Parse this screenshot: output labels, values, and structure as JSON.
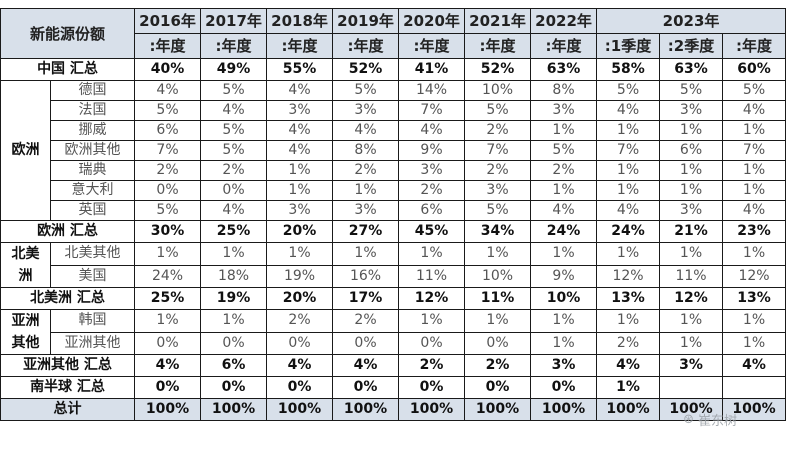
{
  "header": {
    "corner": "新能源份额",
    "years": [
      "2016年",
      "2017年",
      "2018年",
      "2019年",
      "2020年",
      "2021年",
      "2022年",
      "2023年"
    ],
    "periods": [
      ":年度",
      ":年度",
      ":年度",
      ":年度",
      ":年度",
      ":年度",
      ":年度",
      ":1季度",
      ":2季度",
      ":年度"
    ]
  },
  "china": {
    "label": "中国 汇总",
    "values": [
      "40%",
      "49%",
      "55%",
      "52%",
      "41%",
      "52%",
      "63%",
      "58%",
      "63%",
      "60%"
    ]
  },
  "europe": {
    "region": "欧洲",
    "rows": [
      {
        "name": "德国",
        "values": [
          "4%",
          "5%",
          "4%",
          "5%",
          "14%",
          "10%",
          "8%",
          "5%",
          "5%",
          "5%"
        ]
      },
      {
        "name": "法国",
        "values": [
          "5%",
          "4%",
          "3%",
          "3%",
          "7%",
          "5%",
          "3%",
          "4%",
          "3%",
          "4%"
        ]
      },
      {
        "name": "挪威",
        "values": [
          "6%",
          "5%",
          "4%",
          "4%",
          "4%",
          "2%",
          "1%",
          "1%",
          "1%",
          "1%"
        ]
      },
      {
        "name": "欧洲其他",
        "values": [
          "7%",
          "5%",
          "4%",
          "8%",
          "9%",
          "7%",
          "5%",
          "7%",
          "6%",
          "7%"
        ]
      },
      {
        "name": "瑞典",
        "values": [
          "2%",
          "2%",
          "1%",
          "2%",
          "3%",
          "2%",
          "2%",
          "1%",
          "1%",
          "1%"
        ]
      },
      {
        "name": "意大利",
        "values": [
          "0%",
          "0%",
          "1%",
          "1%",
          "2%",
          "3%",
          "1%",
          "1%",
          "1%",
          "1%"
        ]
      },
      {
        "name": "英国",
        "values": [
          "5%",
          "4%",
          "3%",
          "3%",
          "6%",
          "5%",
          "4%",
          "4%",
          "3%",
          "4%"
        ]
      }
    ],
    "sum_label": "欧洲 汇总",
    "sum": [
      "30%",
      "25%",
      "20%",
      "27%",
      "45%",
      "34%",
      "24%",
      "24%",
      "21%",
      "23%"
    ]
  },
  "north_america": {
    "region_line1": "北美",
    "region_line2": "洲",
    "rows": [
      {
        "name": "北美其他",
        "values": [
          "1%",
          "1%",
          "1%",
          "1%",
          "1%",
          "1%",
          "1%",
          "1%",
          "1%",
          "1%"
        ]
      },
      {
        "name": "美国",
        "values": [
          "24%",
          "18%",
          "19%",
          "16%",
          "11%",
          "10%",
          "9%",
          "12%",
          "11%",
          "12%"
        ]
      }
    ],
    "sum_label": "北美洲 汇总",
    "sum": [
      "25%",
      "19%",
      "20%",
      "17%",
      "12%",
      "11%",
      "10%",
      "13%",
      "12%",
      "13%"
    ]
  },
  "asia_other": {
    "region_line1": "亚洲",
    "region_line2": "其他",
    "rows": [
      {
        "name": "韩国",
        "values": [
          "1%",
          "1%",
          "2%",
          "2%",
          "1%",
          "1%",
          "1%",
          "1%",
          "1%",
          "1%"
        ]
      },
      {
        "name": "亚洲其他",
        "values": [
          "0%",
          "0%",
          "0%",
          "0%",
          "0%",
          "0%",
          "1%",
          "2%",
          "1%",
          "1%"
        ]
      }
    ],
    "sum_label": "亚洲其他 汇总",
    "sum": [
      "4%",
      "6%",
      "4%",
      "4%",
      "2%",
      "2%",
      "3%",
      "4%",
      "3%",
      "4%"
    ]
  },
  "southern": {
    "label": "南半球 汇总",
    "values": [
      "0%",
      "0%",
      "0%",
      "0%",
      "0%",
      "0%",
      "0%",
      "1%",
      "",
      ""
    ]
  },
  "total": {
    "label": "总计",
    "values": [
      "100%",
      "100%",
      "100%",
      "100%",
      "100%",
      "100%",
      "100%",
      "100%",
      "100%",
      "100%"
    ]
  },
  "watermark": {
    "icon": "wechat-icon",
    "text": "崔东树"
  }
}
